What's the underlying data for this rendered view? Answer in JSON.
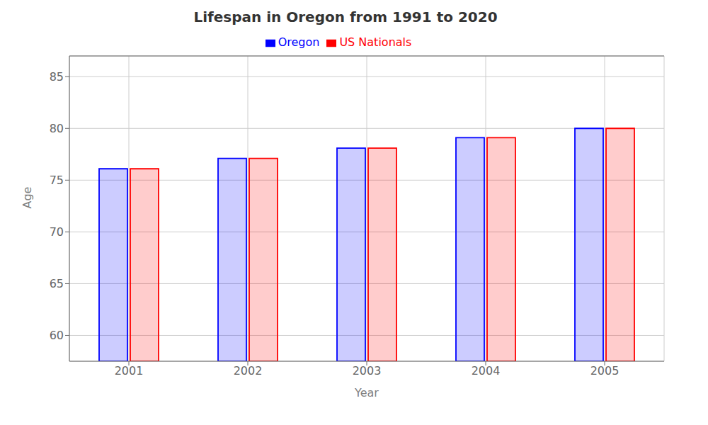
{
  "chart_data": {
    "type": "bar",
    "title": "Lifespan in Oregon from 1991 to 2020",
    "x_label": "Year",
    "y_label": "Age",
    "categories": [
      "2001",
      "2002",
      "2003",
      "2004",
      "2005"
    ],
    "series": [
      {
        "name": "Oregon",
        "color": "#0000ff",
        "values": [
          76.1,
          77.1,
          78.1,
          79.1,
          80.0
        ]
      },
      {
        "name": "US Nationals",
        "color": "#ff0000",
        "values": [
          76.1,
          77.1,
          78.1,
          79.1,
          80.0
        ]
      }
    ],
    "ylim": [
      57.5,
      87
    ],
    "yticks": [
      60,
      65,
      70,
      75,
      80,
      85
    ],
    "grid": true,
    "legend": "upper center"
  }
}
